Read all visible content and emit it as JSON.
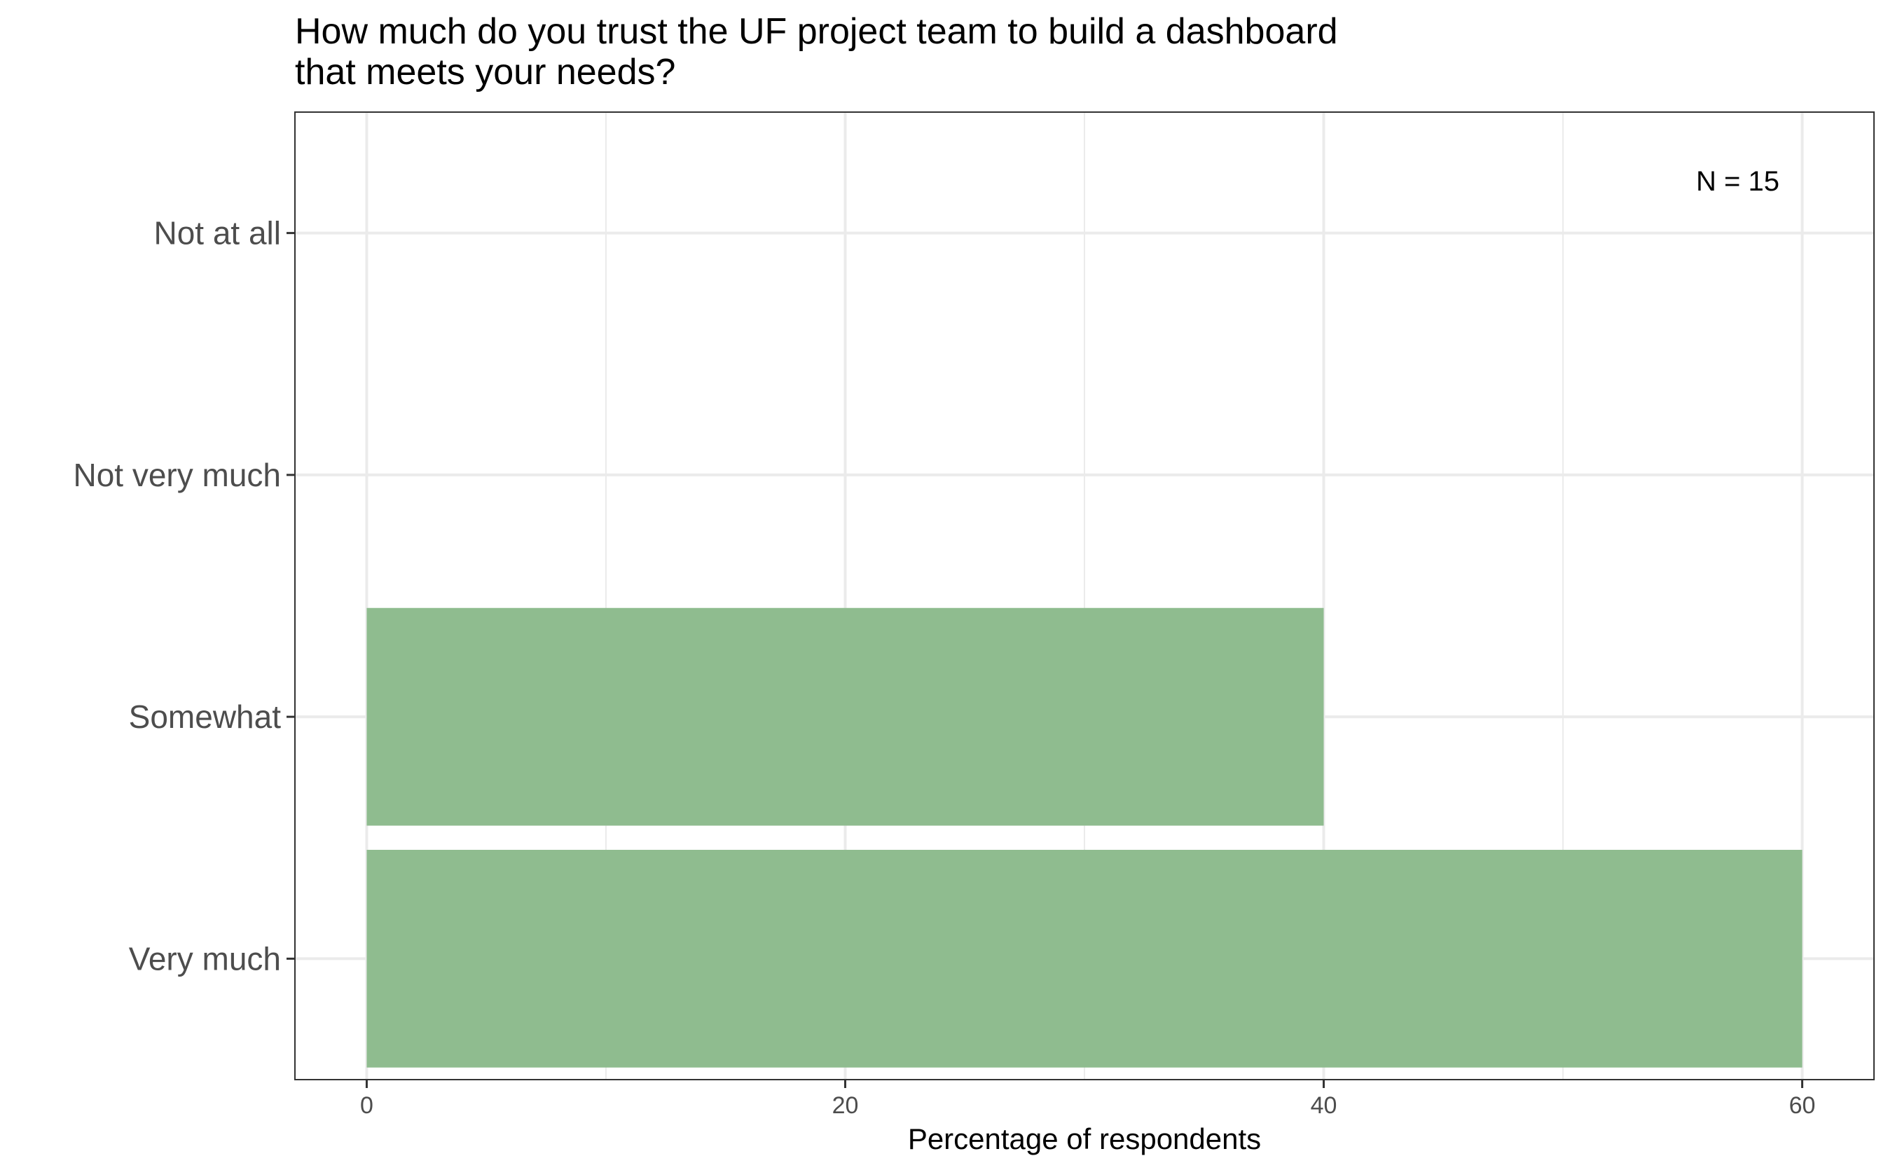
{
  "chart_data": {
    "type": "bar",
    "orientation": "horizontal",
    "title_lines": [
      "How much do you trust the UF project team to build a dashboard",
      "that meets your needs?"
    ],
    "categories": [
      "Not at all",
      "Not very much",
      "Somewhat",
      "Very much"
    ],
    "values": [
      0,
      0,
      40,
      60
    ],
    "xlabel": "Percentage of respondents",
    "ylabel": "",
    "xlim": [
      -3,
      63
    ],
    "x_ticks": [
      0,
      20,
      40,
      60
    ],
    "x_minor_ticks": [
      10,
      30,
      50
    ],
    "grid": true,
    "annotation": "N = 15",
    "colors": {
      "bar": "#8fbc8f",
      "grid": "#ebebeb",
      "panel_border": "#333333",
      "tick": "#333333"
    }
  }
}
